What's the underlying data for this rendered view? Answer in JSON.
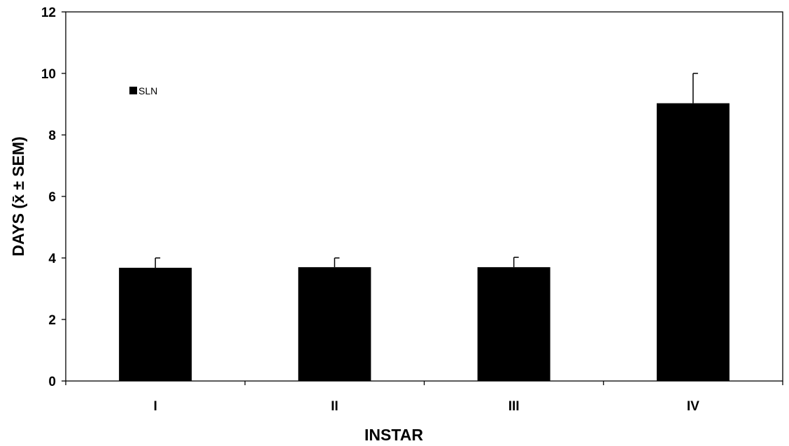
{
  "chart_data": {
    "type": "bar",
    "categories": [
      "I",
      "II",
      "III",
      "IV"
    ],
    "series": [
      {
        "name": "SLN",
        "values": [
          3.68,
          3.7,
          3.7,
          9.03
        ],
        "error_plus": [
          0.32,
          0.3,
          0.32,
          0.97
        ]
      }
    ],
    "xlabel": "INSTAR",
    "ylabel": "DAYS (x̄ ± SEM)",
    "ylim": [
      0,
      12
    ],
    "yticks": [
      0,
      2,
      4,
      6,
      8,
      10,
      12
    ],
    "grid": false,
    "legend_position": "top-left",
    "bar_color": "#000000"
  }
}
